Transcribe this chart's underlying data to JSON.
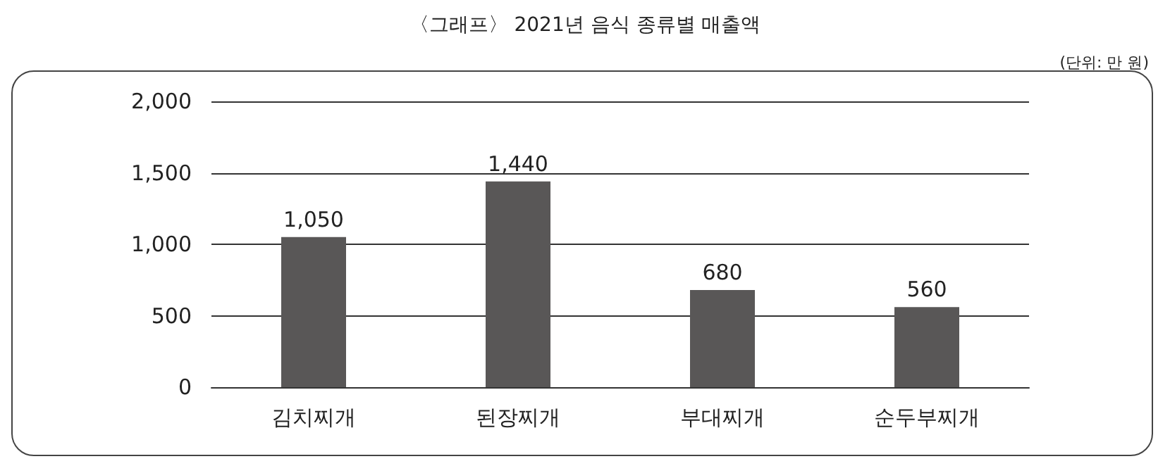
{
  "chart_data": {
    "type": "bar",
    "title": "〈그래프〉 2021년 음식 종류별 매출액",
    "annotations": [
      "(단위: 만 원)"
    ],
    "categories": [
      "김치찌개",
      "된장찌개",
      "부대찌개",
      "순두부찌개"
    ],
    "values": [
      1050,
      1440,
      680,
      560
    ],
    "color": "#595757",
    "value_labels": [
      "1,050",
      "1,440",
      "680",
      "560"
    ],
    "ylim": [
      0,
      2000
    ],
    "yticks": [
      0,
      500,
      {
        "value": 1000,
        "label": "1,000"
      },
      {
        "value": 1500,
        "label": "1,500"
      },
      {
        "value": 2000,
        "label": "2,000"
      }
    ],
    "grid": "y"
  }
}
